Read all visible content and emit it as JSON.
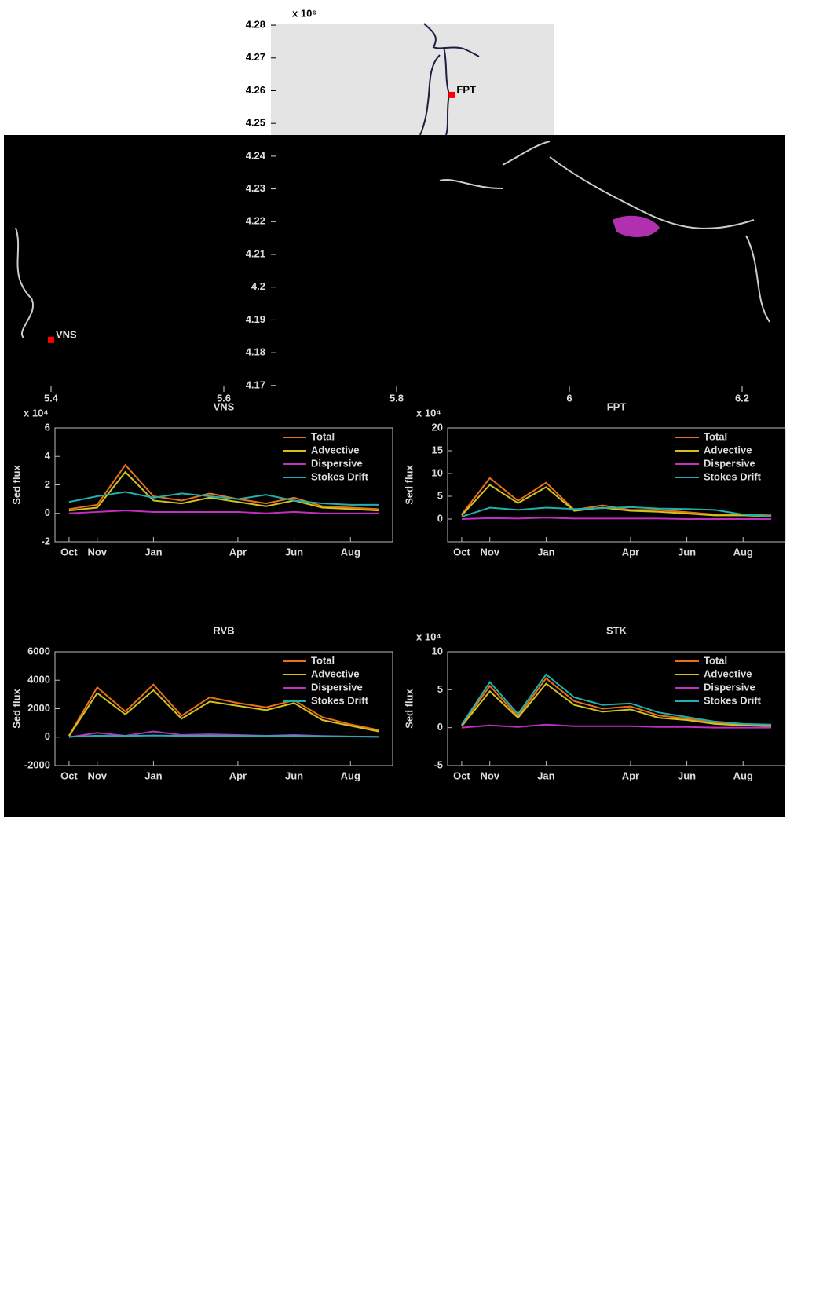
{
  "chart_data": [
    {
      "type": "map",
      "ylabel_exponent": "x 10⁶",
      "xlim": [
        5.35,
        6.25
      ],
      "xticks": [
        5.4,
        5.6,
        5.8,
        6,
        6.2
      ],
      "ylim": [
        4.169,
        4.2805
      ],
      "yticks": [
        4.17,
        4.18,
        4.19,
        4.2,
        4.21,
        4.22,
        4.23,
        4.24,
        4.25,
        4.26,
        4.27,
        4.28
      ],
      "stations": [
        {
          "name": "FPT",
          "x": 5.864,
          "y": 4.2587,
          "color": "#ff0000"
        },
        {
          "name": "VNS",
          "x": 5.4,
          "y": 4.1839,
          "color": "#ff0000"
        }
      ]
    },
    {
      "type": "line",
      "title": "VNS",
      "ylabel": "Sed flux",
      "y_exponent_label": "x 10⁴",
      "categories": [
        "Oct",
        "Nov",
        null,
        "Jan",
        null,
        null,
        "Apr",
        null,
        "Jun",
        null,
        "Aug",
        null
      ],
      "ylim": [
        -2,
        6
      ],
      "yticks": [
        -2,
        0,
        2,
        4,
        6
      ],
      "legend": "upper right",
      "series": [
        {
          "name": "Total",
          "color": "#e8701a",
          "values": [
            0.3,
            0.6,
            3.4,
            1.2,
            0.9,
            1.4,
            1.0,
            0.7,
            1.1,
            0.5,
            0.4,
            0.3
          ]
        },
        {
          "name": "Advective",
          "color": "#d4c21a",
          "values": [
            0.2,
            0.4,
            2.9,
            0.9,
            0.7,
            1.1,
            0.8,
            0.5,
            0.9,
            0.4,
            0.3,
            0.2
          ]
        },
        {
          "name": "Dispersive",
          "color": "#c030c0",
          "values": [
            0,
            0.1,
            0.2,
            0.1,
            0.1,
            0.1,
            0.1,
            0,
            0.1,
            0,
            0,
            0
          ]
        },
        {
          "name": "Stokes Drift",
          "color": "#20b0b0",
          "values": [
            0.8,
            1.2,
            1.5,
            1.1,
            1.4,
            1.2,
            1.0,
            1.3,
            0.9,
            0.7,
            0.6,
            0.6
          ]
        }
      ]
    },
    {
      "type": "line",
      "title": "FPT",
      "ylabel": "Sed flux",
      "y_exponent_label": "x 10⁴",
      "categories": [
        "Oct",
        "Nov",
        null,
        "Jan",
        null,
        null,
        "Apr",
        null,
        "Jun",
        null,
        "Aug",
        null
      ],
      "ylim": [
        -5,
        20
      ],
      "yticks": [
        0,
        5,
        10,
        15,
        20
      ],
      "legend": "upper right",
      "series": [
        {
          "name": "Total",
          "color": "#e8701a",
          "values": [
            1,
            9,
            4,
            8,
            2,
            3,
            2,
            2,
            1.5,
            1,
            1,
            0.8
          ]
        },
        {
          "name": "Advective",
          "color": "#d4c21a",
          "values": [
            0.8,
            7.5,
            3.5,
            7,
            1.8,
            2.5,
            1.8,
            1.6,
            1.2,
            0.8,
            0.8,
            0.6
          ]
        },
        {
          "name": "Dispersive",
          "color": "#c030c0",
          "values": [
            0,
            0.2,
            0.1,
            0.3,
            0.1,
            0.1,
            0.1,
            0.1,
            0,
            0,
            0,
            0
          ]
        },
        {
          "name": "Stokes Drift",
          "color": "#20b0b0",
          "values": [
            0.5,
            2.5,
            2.0,
            2.5,
            2.2,
            2.4,
            2.6,
            2.3,
            2.2,
            2.0,
            1.0,
            0.6
          ]
        }
      ]
    },
    {
      "type": "line",
      "title": "RVB",
      "ylabel": "Sed flux",
      "categories": [
        "Oct",
        "Nov",
        null,
        "Jan",
        null,
        null,
        "Apr",
        null,
        "Jun",
        null,
        "Aug",
        null
      ],
      "ylim": [
        -2000,
        6000
      ],
      "yticks": [
        -2000,
        0,
        2000,
        4000,
        6000
      ],
      "legend": "upper right",
      "series": [
        {
          "name": "Total",
          "color": "#e8701a",
          "values": [
            100,
            3500,
            1800,
            3700,
            1500,
            2800,
            2400,
            2100,
            2600,
            1400,
            900,
            500
          ]
        },
        {
          "name": "Advective",
          "color": "#d4c21a",
          "values": [
            80,
            3100,
            1600,
            3300,
            1300,
            2500,
            2200,
            1900,
            2400,
            1200,
            800,
            400
          ]
        },
        {
          "name": "Dispersive",
          "color": "#c030c0",
          "values": [
            0,
            300,
            100,
            400,
            150,
            200,
            150,
            100,
            150,
            80,
            50,
            30
          ]
        },
        {
          "name": "Stokes Drift",
          "color": "#20b0b0",
          "values": [
            20,
            100,
            80,
            120,
            90,
            100,
            90,
            80,
            90,
            60,
            40,
            20
          ]
        }
      ]
    },
    {
      "type": "line",
      "title": "STK",
      "ylabel": "Sed flux",
      "y_exponent_label": "x 10⁴",
      "categories": [
        "Oct",
        "Nov",
        null,
        "Jan",
        null,
        null,
        "Apr",
        null,
        "Jun",
        null,
        "Aug",
        null
      ],
      "ylim": [
        -5,
        10
      ],
      "yticks": [
        -5,
        0,
        5,
        10
      ],
      "legend": "upper right",
      "series": [
        {
          "name": "Total",
          "color": "#e8701a",
          "values": [
            0.3,
            5.5,
            1.5,
            6.5,
            3.5,
            2.5,
            2.8,
            1.6,
            1.2,
            0.6,
            0.4,
            0.3
          ]
        },
        {
          "name": "Advective",
          "color": "#d4c21a",
          "values": [
            0.2,
            4.8,
            1.3,
            5.8,
            3.0,
            2.1,
            2.4,
            1.3,
            1.0,
            0.5,
            0.3,
            0.2
          ]
        },
        {
          "name": "Dispersive",
          "color": "#c030c0",
          "values": [
            0,
            0.3,
            0.1,
            0.4,
            0.2,
            0.2,
            0.2,
            0.1,
            0.1,
            0,
            0,
            0
          ]
        },
        {
          "name": "Stokes Drift",
          "color": "#20b0b0",
          "values": [
            0.4,
            6.0,
            1.8,
            7.0,
            4.0,
            3.0,
            3.2,
            2.0,
            1.4,
            0.8,
            0.5,
            0.4
          ]
        }
      ]
    }
  ]
}
